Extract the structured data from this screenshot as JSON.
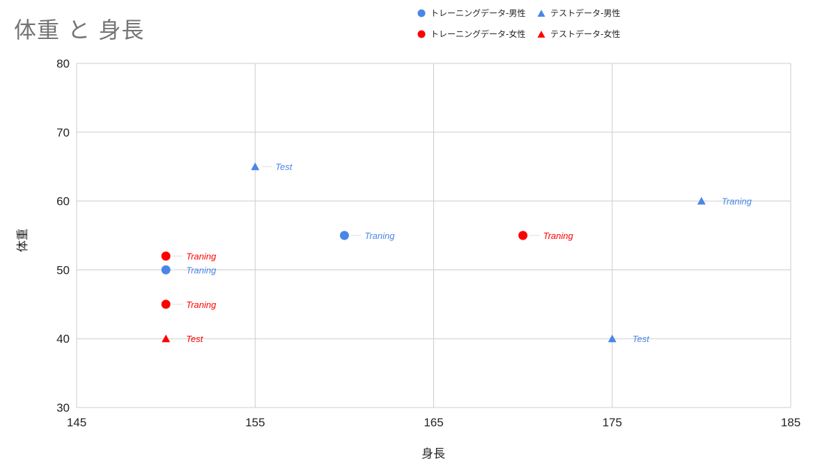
{
  "chart_data": {
    "type": "scatter",
    "title": "体重 と 身長",
    "xlabel": "身長",
    "ylabel": "体重",
    "xlim": [
      145,
      185
    ],
    "ylim": [
      30,
      80
    ],
    "x_ticks": [
      145,
      155,
      165,
      175,
      185
    ],
    "y_ticks": [
      30,
      40,
      50,
      60,
      70,
      80
    ],
    "grid": true,
    "legend_position": "top-right",
    "series": [
      {
        "name": "トレーニングデータ-男性",
        "marker": "circle",
        "color": "#4a86e8",
        "points": [
          {
            "x": 150,
            "y": 50,
            "label": "Traning"
          },
          {
            "x": 160,
            "y": 55,
            "label": "Traning"
          }
        ]
      },
      {
        "name": "トレーニングデータ-女性",
        "marker": "circle",
        "color": "#ff0000",
        "points": [
          {
            "x": 150,
            "y": 52,
            "label": "Traning"
          },
          {
            "x": 150,
            "y": 45,
            "label": "Traning"
          },
          {
            "x": 170,
            "y": 55,
            "label": "Traning"
          }
        ]
      },
      {
        "name": "テストデータ-男性",
        "marker": "triangle",
        "color": "#4a86e8",
        "points": [
          {
            "x": 155,
            "y": 65,
            "label": "Test"
          },
          {
            "x": 180,
            "y": 60,
            "label": "Traning"
          },
          {
            "x": 175,
            "y": 40,
            "label": "Test"
          }
        ]
      },
      {
        "name": "テストデータ-女性",
        "marker": "triangle",
        "color": "#ff0000",
        "points": [
          {
            "x": 150,
            "y": 40,
            "label": "Test"
          }
        ]
      }
    ]
  }
}
